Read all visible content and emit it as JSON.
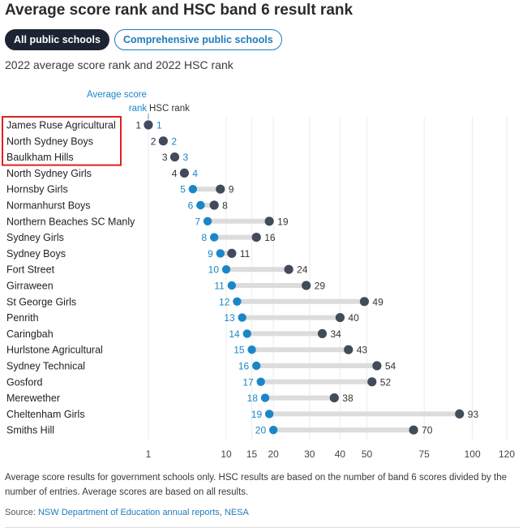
{
  "header": {
    "title": "Average score rank and HSC band 6 result rank",
    "tabs": [
      {
        "label": "All public schools",
        "active": true
      },
      {
        "label": "Comprehensive public schools",
        "active": false
      }
    ],
    "subtitle": "2022 average score rank and 2022 HSC rank"
  },
  "colors": {
    "average_score": "#1a86c8",
    "hsc": "#424a5c",
    "connector": "#dcdcdc",
    "highlight_box": "#e02020",
    "axis_text": "#444444"
  },
  "chart_data": {
    "type": "dumbbell",
    "series": [
      {
        "name": "Average score rank",
        "values": [
          1,
          2,
          3,
          4,
          5,
          6,
          7,
          8,
          9,
          10,
          11,
          12,
          13,
          14,
          15,
          16,
          17,
          18,
          19,
          20
        ]
      },
      {
        "name": "HSC rank",
        "values": [
          1,
          2,
          3,
          4,
          9,
          8,
          19,
          16,
          11,
          24,
          29,
          49,
          40,
          34,
          43,
          54,
          52,
          38,
          93,
          70
        ]
      }
    ],
    "categories": [
      "James Ruse Agricultural",
      "North Sydney Boys",
      "Baulkham Hills",
      "North Sydney Girls",
      "Hornsby Girls",
      "Normanhurst Boys",
      "Northern Beaches SC Manly",
      "Sydney Girls",
      "Sydney Boys",
      "Fort Street",
      "Girraween",
      "St George Girls",
      "Penrith",
      "Caringbah",
      "Hurlstone Agricultural",
      "Sydney Technical",
      "Gosford",
      "Merewether",
      "Cheltenham Girls",
      "Smiths Hill"
    ],
    "x_ticks": [
      1,
      10,
      15,
      20,
      30,
      40,
      50,
      75,
      100,
      120
    ],
    "x_scale": "sqrt",
    "xlim": [
      1,
      120
    ],
    "grid": true,
    "highlighted_categories": [
      "James Ruse Agricultural",
      "North Sydney Boys",
      "Baulkham Hills"
    ],
    "column_labels": {
      "average_score": "Average score rank",
      "hsc": "HSC rank"
    }
  },
  "footnote": "Average score results for government schools only. HSC results are based on the number of band 6 scores divided by the number of entries. Average scores are based on all results.",
  "source": {
    "prefix": "Source:",
    "links": [
      "NSW Department of Education annual reports",
      "NESA"
    ],
    "separator": ", "
  }
}
